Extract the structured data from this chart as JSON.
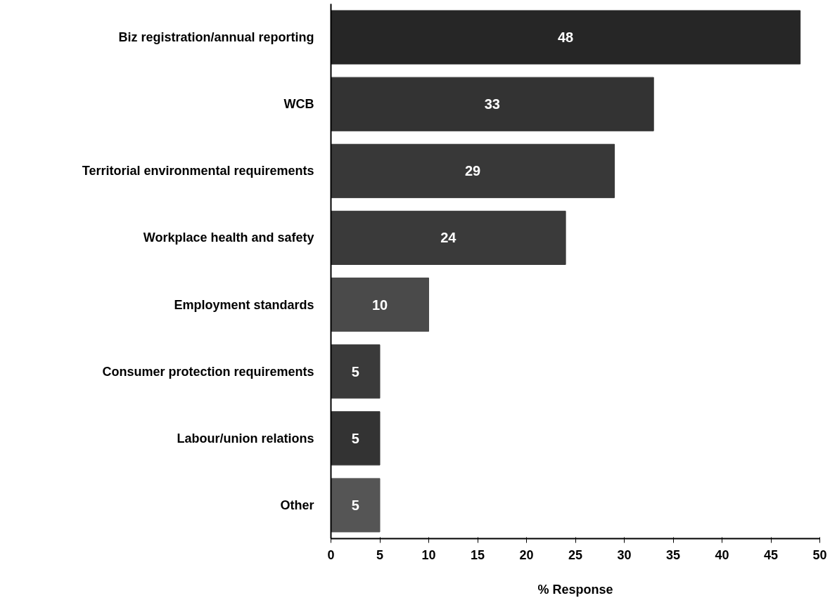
{
  "chart_data": {
    "type": "bar",
    "orientation": "horizontal",
    "xlabel": "% Response",
    "categories": [
      "Biz registration/annual reporting",
      "WCB",
      "Territorial environmental requirements",
      "Workplace health and safety",
      "Employment standards",
      "Consumer protection requirements",
      "Labour/union relations",
      "Other"
    ],
    "values": [
      48,
      33,
      29,
      24,
      10,
      5,
      5,
      5
    ],
    "colors": [
      "#262626",
      "#333333",
      "#383838",
      "#3a3a3a",
      "#4a4a4a",
      "#3a3a3a",
      "#333333",
      "#555555"
    ],
    "xlim": [
      0,
      50
    ],
    "xticks": [
      0,
      5,
      10,
      15,
      20,
      25,
      30,
      35,
      40,
      45,
      50
    ],
    "data_labels": true,
    "grid": false
  }
}
